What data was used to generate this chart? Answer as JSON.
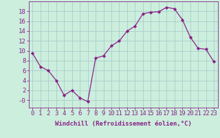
{
  "x": [
    0,
    1,
    2,
    3,
    4,
    5,
    6,
    7,
    8,
    9,
    10,
    11,
    12,
    13,
    14,
    15,
    16,
    17,
    18,
    19,
    20,
    21,
    22,
    23
  ],
  "y": [
    9.5,
    6.8,
    6.0,
    4.0,
    1.0,
    2.0,
    0.5,
    -0.3,
    8.5,
    9.0,
    11.0,
    12.0,
    14.0,
    15.0,
    17.5,
    17.8,
    17.9,
    18.8,
    18.5,
    16.3,
    12.8,
    10.5,
    10.3,
    7.8
  ],
  "line_color": "#882288",
  "marker": "D",
  "marker_size": 2.2,
  "bg_color": "#cceedd",
  "grid_color": "#aacccc",
  "xlabel": "Windchill (Refroidissement éolien,°C)",
  "ylim": [
    -1.5,
    20
  ],
  "xlim": [
    -0.5,
    23.5
  ],
  "xlabel_fontsize": 6.5,
  "tick_fontsize": 6.5,
  "tick_color": "#882288",
  "label_color": "#882288"
}
